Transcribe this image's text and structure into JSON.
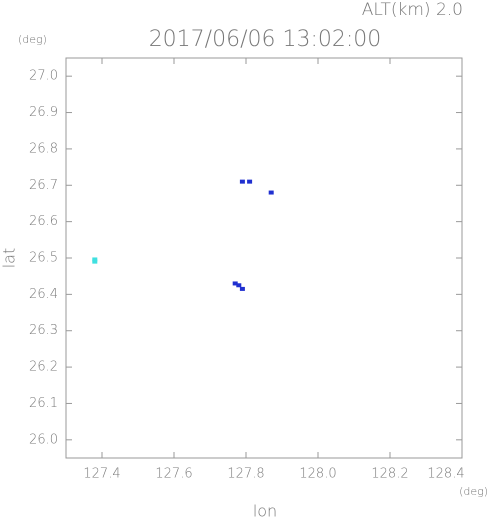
{
  "chart_data": {
    "type": "scatter",
    "title": "2017/06/06 13:02:00",
    "annotation": "ALT(km) 2.0",
    "x_label": "lon",
    "x_unit": "(deg)",
    "y_label": "lat",
    "y_unit": "(deg)",
    "xlim": [
      127.3,
      128.4
    ],
    "xticks": [
      127.4,
      127.6,
      127.8,
      {
        "value": 128,
        "label": "128.0"
      },
      128.2,
      128.4
    ],
    "ylim": [
      25.95,
      27.05
    ],
    "yticks": [
      {
        "value": 26,
        "label": "26.0"
      },
      26.1,
      26.2,
      26.3,
      26.4,
      26.5,
      26.6,
      26.7,
      26.8,
      26.9,
      {
        "value": 27,
        "label": "27.0"
      }
    ],
    "series": [
      {
        "color": "#40e0e0",
        "x": [
          127.38,
          127.38
        ],
        "y": [
          26.49,
          26.496
        ]
      },
      {
        "color": "#2030d0",
        "x": [
          127.79,
          127.81,
          127.87,
          127.77,
          127.78,
          127.79
        ],
        "y": [
          26.71,
          26.71,
          26.68,
          26.43,
          26.425,
          26.415
        ]
      }
    ]
  }
}
